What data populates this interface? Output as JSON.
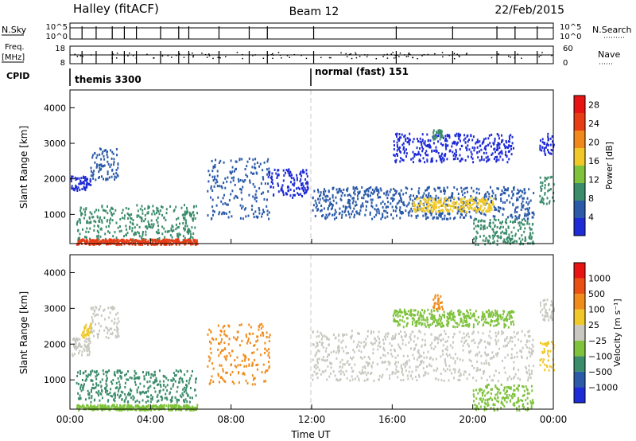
{
  "header": {
    "station": "Halley (fitACF)",
    "beam": "Beam 12",
    "date": "22/Feb/2015"
  },
  "strips": {
    "nsky_label": "N.Sky",
    "nsky_ticks": [
      "10^5",
      "10^0"
    ],
    "nsearch_label": "N.Search",
    "nsearch_ticks": [
      "10^5",
      "10^0"
    ],
    "freq_label": "Freq.",
    "freq_unit": "[MHz]",
    "freq_ticks": [
      "18",
      "8"
    ],
    "nave_label": "Nave",
    "nave_ticks": [
      "60",
      "0"
    ],
    "cpid_label": "CPID",
    "cpid_modes": [
      {
        "name": "themis 3300",
        "start": 0
      },
      {
        "name": "normal (fast) 151",
        "start": 12
      }
    ]
  },
  "colors": {
    "scatter_grey": "#c8c8c0",
    "power_scale": [
      "#1f2bd6",
      "#2a5aa8",
      "#3c8c6c",
      "#7fc23c",
      "#f0c828",
      "#f0881c",
      "#e83c14",
      "#e81414"
    ],
    "velocity_scale": [
      "#e81414",
      "#e85014",
      "#f08c1c",
      "#f0c828",
      "#c8c8c0",
      "#7fc23c",
      "#3c8c6c",
      "#2a5aa8",
      "#1f2bd6"
    ]
  },
  "chart_data": [
    {
      "type": "heatmap",
      "title": "Power",
      "xlabel": "Time UT",
      "ylabel": "Slant Range [km]",
      "xlim": [
        0,
        24
      ],
      "ylim": [
        180,
        4500
      ],
      "x_ticks": [
        "00:00",
        "04:00",
        "08:00",
        "12:00",
        "16:00",
        "20:00",
        "00:00"
      ],
      "y_ticks": [
        1000,
        2000,
        3000,
        4000
      ],
      "colorbar_label": "Power [dB]",
      "colorbar_ticks": [
        4,
        8,
        12,
        16,
        20,
        24,
        28
      ],
      "colorbar_range": [
        0,
        30
      ],
      "regions": [
        {
          "t": [
            0.0,
            1.0
          ],
          "r": [
            1700,
            2100
          ],
          "color": "#1f2bd6"
        },
        {
          "t": [
            1.0,
            2.4
          ],
          "r": [
            2000,
            2900
          ],
          "color": "#2a5aa8"
        },
        {
          "t": [
            0.3,
            6.3
          ],
          "r": [
            250,
            1300
          ],
          "color": "#3c8c6c"
        },
        {
          "t": [
            0.3,
            6.3
          ],
          "r": [
            180,
            330
          ],
          "color": "#e83c14"
        },
        {
          "t": [
            6.8,
            9.9
          ],
          "r": [
            900,
            2600
          ],
          "color": "#2a5aa8"
        },
        {
          "t": [
            9.8,
            11.8
          ],
          "r": [
            1500,
            2300
          ],
          "color": "#1f2bd6"
        },
        {
          "t": [
            12.0,
            23.0
          ],
          "r": [
            900,
            1800
          ],
          "color": "#2a5aa8"
        },
        {
          "t": [
            17.0,
            21.0
          ],
          "r": [
            1100,
            1500
          ],
          "color": "#f0c828"
        },
        {
          "t": [
            16.0,
            22.0
          ],
          "r": [
            2500,
            3300
          ],
          "color": "#1f2bd6"
        },
        {
          "t": [
            18.0,
            18.5
          ],
          "r": [
            3100,
            3400
          ],
          "color": "#3c8c6c"
        },
        {
          "t": [
            20.0,
            23.0
          ],
          "r": [
            180,
            900
          ],
          "color": "#3c8c6c"
        },
        {
          "t": [
            23.3,
            24.0
          ],
          "r": [
            1300,
            2100
          ],
          "color": "#3c8c6c"
        },
        {
          "t": [
            23.3,
            24.0
          ],
          "r": [
            2700,
            3300
          ],
          "color": "#1f2bd6"
        }
      ]
    },
    {
      "type": "heatmap",
      "title": "Velocity",
      "xlabel": "Time UT",
      "ylabel": "Slant Range [km]",
      "xlim": [
        0,
        24
      ],
      "ylim": [
        180,
        4500
      ],
      "x_ticks": [
        "00:00",
        "04:00",
        "08:00",
        "12:00",
        "16:00",
        "20:00",
        "00:00"
      ],
      "y_ticks": [
        1000,
        2000,
        3000,
        4000
      ],
      "colorbar_label": "Velocity [m s⁻¹]",
      "colorbar_ticks": [
        "1000",
        "500",
        "100",
        "25",
        "−25",
        "−100",
        "−500",
        "−1000"
      ],
      "regions": [
        {
          "t": [
            0.0,
            1.0
          ],
          "r": [
            1700,
            2200
          ],
          "color": "#c8c8c0"
        },
        {
          "t": [
            0.5,
            1.0
          ],
          "r": [
            2200,
            2600
          ],
          "color": "#f0c828"
        },
        {
          "t": [
            1.0,
            2.4
          ],
          "r": [
            2200,
            3100
          ],
          "color": "#c8c8c0"
        },
        {
          "t": [
            0.3,
            6.3
          ],
          "r": [
            400,
            1300
          ],
          "color": "#3c8c6c"
        },
        {
          "t": [
            0.3,
            6.3
          ],
          "r": [
            180,
            330
          ],
          "color": "#7fc23c"
        },
        {
          "t": [
            6.8,
            9.9
          ],
          "r": [
            900,
            2600
          ],
          "color": "#f08c1c"
        },
        {
          "t": [
            12.0,
            23.0
          ],
          "r": [
            1000,
            2400
          ],
          "color": "#c8c8c0"
        },
        {
          "t": [
            18.0,
            18.5
          ],
          "r": [
            3000,
            3400
          ],
          "color": "#f08c1c"
        },
        {
          "t": [
            16.0,
            22.0
          ],
          "r": [
            2500,
            3000
          ],
          "color": "#7fc23c"
        },
        {
          "t": [
            20.0,
            23.0
          ],
          "r": [
            180,
            900
          ],
          "color": "#7fc23c"
        },
        {
          "t": [
            23.3,
            24.0
          ],
          "r": [
            1300,
            2100
          ],
          "color": "#f0c828"
        },
        {
          "t": [
            23.3,
            24.0
          ],
          "r": [
            2700,
            3300
          ],
          "color": "#c8c8c0"
        }
      ]
    }
  ]
}
